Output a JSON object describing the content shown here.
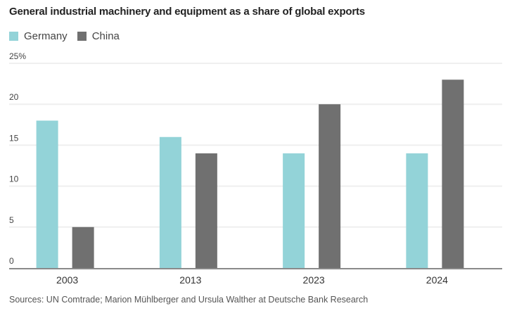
{
  "chart_data": {
    "type": "bar",
    "title": "General industrial machinery and equipment as a share of global exports",
    "categories": [
      "2003",
      "2013",
      "2023",
      "2024"
    ],
    "series": [
      {
        "name": "Germany",
        "color": "#93d3d8",
        "values": [
          18,
          16,
          14,
          14
        ]
      },
      {
        "name": "China",
        "color": "#707070",
        "values": [
          5,
          14,
          20,
          23
        ]
      }
    ],
    "yticks": [
      "0",
      "5",
      "10",
      "15",
      "20",
      "25%"
    ],
    "ytick_values": [
      0,
      5,
      10,
      15,
      20,
      25
    ],
    "ylim": [
      0,
      25
    ],
    "xlabel": "",
    "ylabel": "",
    "grid": true,
    "legend": "top-left",
    "source": "Sources: UN Comtrade; Marion Mühlberger and Ursula Walther at Deutsche Bank Research"
  }
}
